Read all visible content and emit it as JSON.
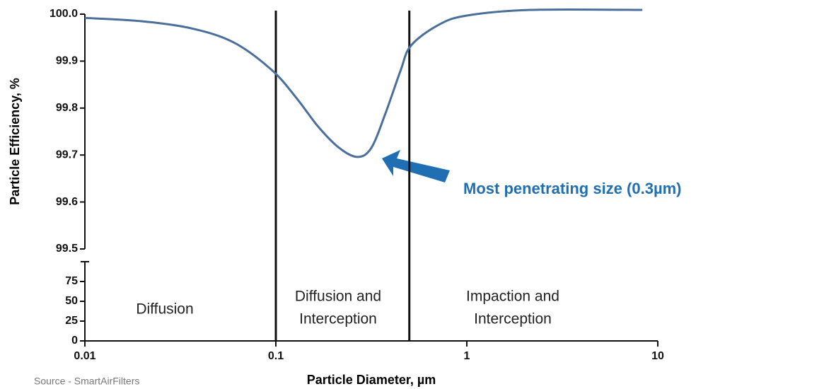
{
  "chart_data": {
    "type": "line",
    "xlabel": "Particle Diameter, µm",
    "ylabel": "Particle Efficiency, %",
    "log_x": true,
    "color": "#4a6f9a",
    "x": [
      0.01,
      0.0198,
      0.0359,
      0.06,
      0.0958,
      0.129,
      0.167,
      0.215,
      0.267,
      0.316,
      0.376,
      0.45,
      0.51,
      0.71,
      1,
      2.15,
      8.3
    ],
    "values": [
      99.992,
      99.985,
      99.97,
      99.94,
      99.88,
      99.82,
      99.76,
      99.715,
      99.696,
      99.715,
      99.79,
      99.88,
      99.933,
      99.977,
      99.997,
      100.009,
      100.009
    ],
    "xlim": [
      0.01,
      10
    ],
    "xticks": [
      0.01,
      0.1,
      1,
      10
    ],
    "ylim": [
      99.5,
      100.0
    ],
    "yticks": [
      99.5,
      99.6,
      99.7,
      99.8,
      99.9,
      {
        "value": 100.0,
        "label": "100.0"
      }
    ],
    "lower_ylim": [
      0,
      100
    ],
    "lower_yticks": [
      0,
      25,
      50,
      75
    ],
    "boundaries": [
      0.1,
      0.5
    ],
    "regions": [
      {
        "lines": [
          "Diffusion"
        ]
      },
      {
        "lines": [
          "Diffusion and",
          "Interception"
        ]
      },
      {
        "lines": [
          "Impaction and",
          "Interception"
        ]
      }
    ],
    "annotation": "Most penetrating size (0.3µm)",
    "source": "Source - SmartAirFilters"
  }
}
